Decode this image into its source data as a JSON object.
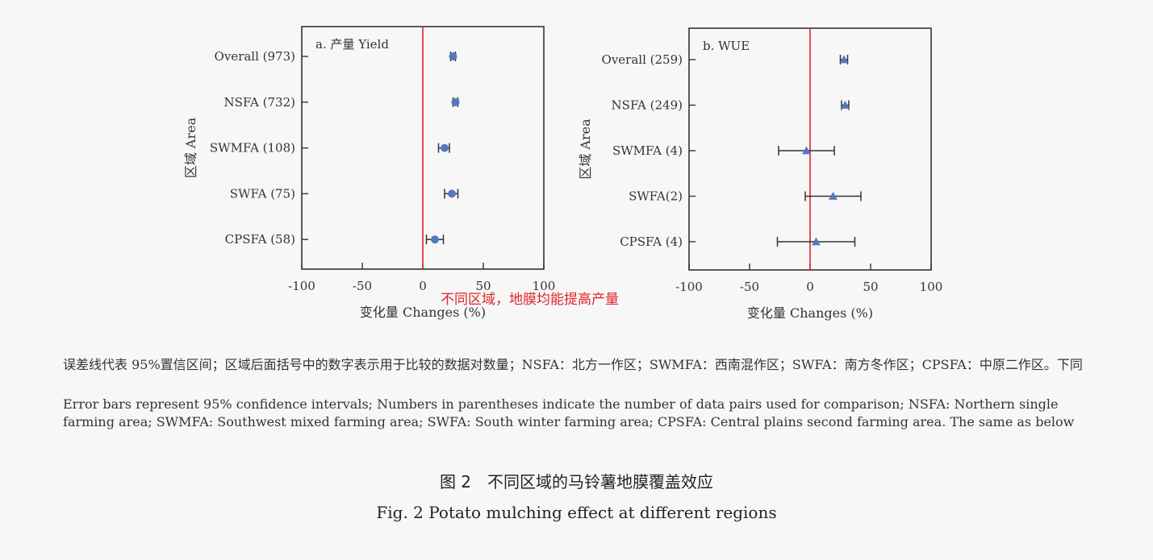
{
  "chart_data": [
    {
      "type": "scatter",
      "panel_label": "a. 产量 Yield",
      "ylabel": "区域 Area",
      "xlabel": "变化量 Changes (%)",
      "xlim": [
        -100,
        100
      ],
      "xticks": [
        "-100",
        "-50",
        "0",
        "50",
        "100"
      ],
      "reference_line_x": 0,
      "reference_line_color": "#e0242a",
      "marker": "circle",
      "marker_color": "#5577c0",
      "categories": [
        "Overall (973)",
        "NSFA (732)",
        "SWMFA (108)",
        "SWFA (75)",
        "CPSFA (58)"
      ],
      "mean": [
        25,
        27,
        18,
        24,
        10
      ],
      "ci_low": [
        23,
        25,
        13,
        18,
        3
      ],
      "ci_high": [
        27,
        29,
        22,
        29,
        17
      ],
      "annotation": "不同区域，地膜均能提高产量"
    },
    {
      "type": "scatter",
      "panel_label": "b. WUE",
      "ylabel": "区域 Area",
      "xlabel": "变化量 Changes (%)",
      "xlim": [
        -100,
        100
      ],
      "xticks": [
        "-100",
        "-50",
        "0",
        "50",
        "100"
      ],
      "reference_line_x": 0,
      "reference_line_color": "#e0242a",
      "marker": "triangle",
      "marker_color": "#5577c0",
      "categories": [
        "Overall (259)",
        "NSFA (249)",
        "SWMFA (4)",
        "SWFA(2)",
        "CPSFA (4)"
      ],
      "mean": [
        28,
        29,
        -3,
        19,
        5
      ],
      "ci_low": [
        25,
        26,
        -26,
        -4,
        -27
      ],
      "ci_high": [
        31,
        32,
        20,
        42,
        37
      ]
    }
  ],
  "notes": {
    "cn": "误差线代表 95%置信区间；区域后面括号中的数字表示用于比较的数据对数量；NSFA：北方一作区；SWMFA：西南混作区；SWFA：南方冬作区；CPSFA：中原二作区。下同",
    "en": "Error bars represent 95% confidence intervals; Numbers in parentheses indicate the number of data pairs used for comparison; NSFA: Northern single farming area; SWMFA: Southwest mixed farming area; SWFA: South winter farming area; CPSFA: Central plains second farming area. The same as below"
  },
  "caption": {
    "cn": "图 2　不同区域的马铃薯地膜覆盖效应",
    "en": "Fig. 2    Potato mulching effect at different regions"
  }
}
